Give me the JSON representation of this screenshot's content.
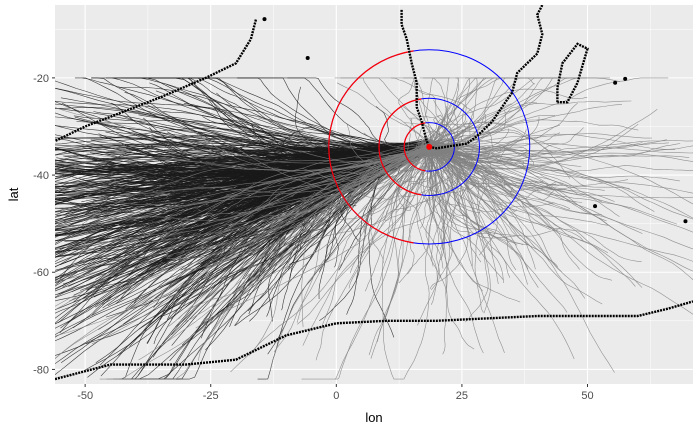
{
  "chart_data": {
    "type": "line",
    "title": "",
    "xlabel": "lon",
    "ylabel": "lat",
    "xlim": [
      -56,
      71
    ],
    "ylim": [
      -83,
      -5
    ],
    "x_ticks": [
      -50,
      -25,
      0,
      25,
      50
    ],
    "y_ticks": [
      -20,
      -40,
      -60,
      -80
    ],
    "grid": true,
    "panel_background": "#ebebeb",
    "grid_color": "#ffffff",
    "series": [
      {
        "color": "#1a1a1a",
        "density": "high",
        "origin": [
          18.5,
          -34.2
        ],
        "spread_lon": [
          -56,
          20
        ],
        "spread_lat": [
          -82,
          -25
        ]
      },
      {
        "color": "#808080",
        "density": "high",
        "origin": [
          18.5,
          -34.2
        ],
        "spread_lon": [
          -56,
          58
        ],
        "spread_lat": [
          -82,
          -22
        ]
      }
    ],
    "coastlines": [
      {
        "name": "",
        "color": "#000000",
        "points": [
          [
            -16,
            -8
          ],
          [
            -17,
            -12
          ],
          [
            -20,
            -17
          ],
          [
            -26,
            -20
          ],
          [
            -35,
            -24
          ],
          [
            -40,
            -26
          ],
          [
            -45,
            -28
          ],
          [
            -50,
            -30
          ],
          [
            -56,
            -33
          ]
        ]
      },
      {
        "name": "",
        "color": "#000000",
        "points": [
          [
            13,
            -6
          ],
          [
            13,
            -9
          ],
          [
            14,
            -12
          ],
          [
            15,
            -17
          ],
          [
            16,
            -21
          ],
          [
            16,
            -26
          ],
          [
            17,
            -29
          ],
          [
            18,
            -33
          ],
          [
            18.5,
            -34.2
          ],
          [
            20,
            -34.5
          ],
          [
            23,
            -34
          ],
          [
            26,
            -33.5
          ],
          [
            28,
            -32
          ],
          [
            31,
            -29
          ],
          [
            33,
            -26
          ],
          [
            35,
            -23
          ],
          [
            36,
            -19
          ],
          [
            38,
            -17
          ],
          [
            40,
            -15
          ],
          [
            41,
            -11
          ],
          [
            40,
            -7
          ],
          [
            41,
            -5
          ]
        ]
      },
      {
        "name": "",
        "color": "#000000",
        "points": [
          [
            44,
            -25
          ],
          [
            44,
            -22
          ],
          [
            45,
            -17
          ],
          [
            48,
            -13
          ],
          [
            50,
            -14
          ],
          [
            48,
            -21
          ],
          [
            46,
            -25
          ],
          [
            44,
            -25
          ]
        ]
      },
      {
        "name": "",
        "color": "#000000",
        "points": [
          [
            -56,
            -82
          ],
          [
            -45,
            -79
          ],
          [
            -30,
            -79
          ],
          [
            -20,
            -78
          ],
          [
            -10,
            -73
          ],
          [
            0,
            -70.5
          ],
          [
            10,
            -70
          ],
          [
            20,
            -70
          ],
          [
            30,
            -69.5
          ],
          [
            40,
            -69
          ],
          [
            50,
            -69
          ],
          [
            60,
            -69
          ],
          [
            66,
            -67.5
          ],
          [
            71,
            -66
          ]
        ]
      }
    ],
    "islands": [
      [
        55.5,
        -21
      ],
      [
        57.5,
        -20.2
      ],
      [
        51.5,
        -46.4
      ],
      [
        69.5,
        -49.5
      ],
      [
        -14.3,
        -7.9
      ],
      [
        -5.7,
        -15.9
      ]
    ],
    "circles": [
      {
        "center": [
          18.5,
          -34.2
        ],
        "radius_deg": 20,
        "color": "#0000ff"
      },
      {
        "center": [
          18.5,
          -34.2
        ],
        "radius_deg": 10,
        "color": "#0000ff"
      },
      {
        "center": [
          18.5,
          -34.2
        ],
        "radius_deg": 5,
        "color": "#0000ff"
      }
    ],
    "origin_point": {
      "lon": 18.5,
      "lat": -34.2,
      "color": "#ff0000"
    }
  }
}
